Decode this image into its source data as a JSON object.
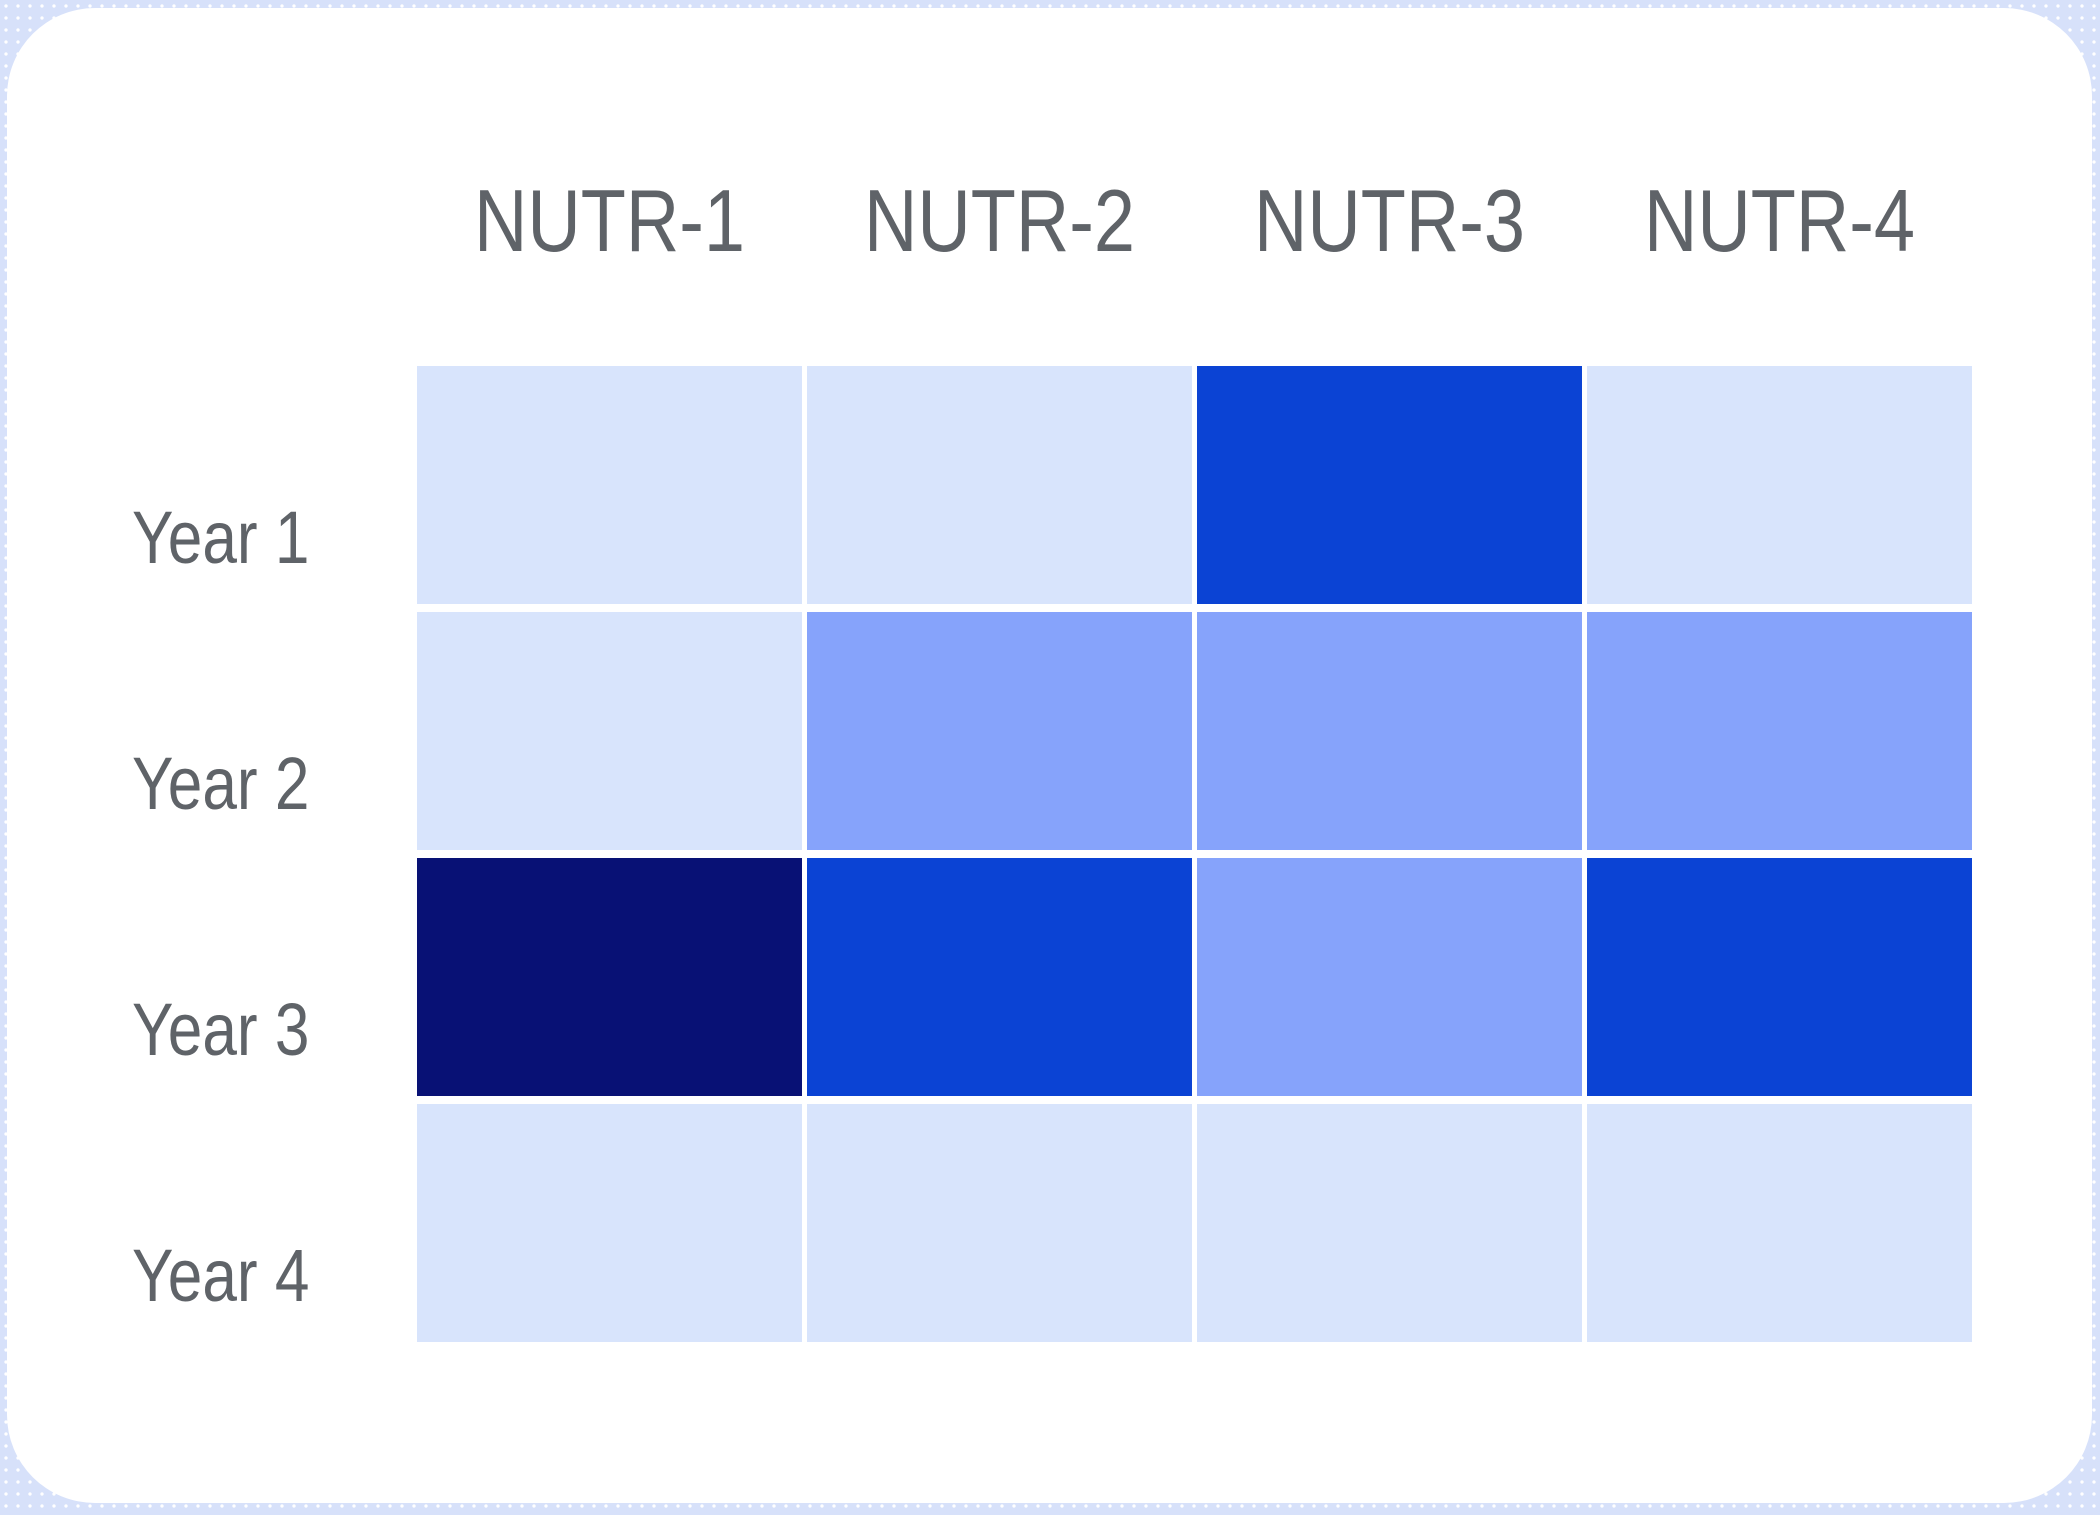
{
  "page": {
    "frame_color": "#d7e1fa",
    "card_color": "#ffffff",
    "text_color": "#5f6368"
  },
  "chart_data": {
    "type": "heatmap",
    "columns": [
      "NUTR-1",
      "NUTR-2",
      "NUTR-3",
      "NUTR-4"
    ],
    "rows": [
      "Year 1",
      "Year 2",
      "Year 3",
      "Year 4"
    ],
    "values": [
      [
        1,
        1,
        3,
        1
      ],
      [
        1,
        2,
        2,
        2
      ],
      [
        4,
        3,
        2,
        3
      ],
      [
        1,
        1,
        1,
        1
      ]
    ],
    "value_encoding": "color intensity level, 1 = lightest, 4 = darkest",
    "palette": {
      "1": "#d8e4fc",
      "2": "#86a3fb",
      "3": "#0b43d4",
      "4": "#081175"
    },
    "grid_gap_color": "#ffffff",
    "legend": "none",
    "title": ""
  }
}
